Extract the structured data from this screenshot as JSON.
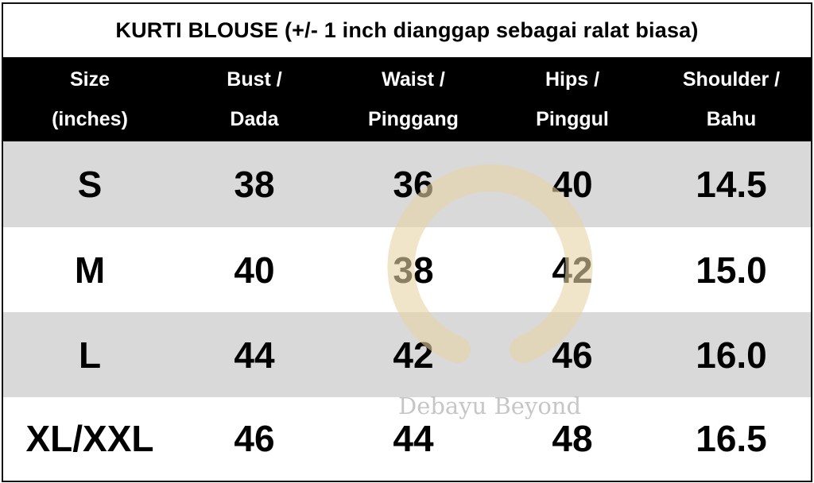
{
  "title": "KURTI BLOUSE (+/- 1 inch dianggap sebagai ralat biasa)",
  "headers": [
    [
      "Size",
      "(inches)"
    ],
    [
      "Bust /",
      "Dada"
    ],
    [
      "Waist /",
      "Pinggang"
    ],
    [
      "Hips /",
      "Pinggul"
    ],
    [
      "Shoulder /",
      "Bahu"
    ]
  ],
  "rows": [
    [
      "S",
      "38",
      "36",
      "40",
      "14.5"
    ],
    [
      "M",
      "40",
      "38",
      "42",
      "15.0"
    ],
    [
      "L",
      "44",
      "42",
      "46",
      "16.0"
    ],
    [
      "XL/XXL",
      "46",
      "44",
      "48",
      "16.5"
    ]
  ],
  "watermark": {
    "text": "Debayu Beyond",
    "icon": "horseshoe-logo"
  },
  "colors": {
    "header_bg": "#000000",
    "row_alt_bg": "#d9d9d9",
    "watermark": "#e6d3a3"
  }
}
